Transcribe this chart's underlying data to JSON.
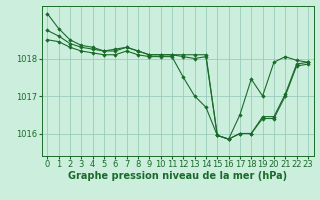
{
  "background_color": "#cceedd",
  "grid_color": "#99ccbb",
  "line_color": "#1a6b2a",
  "marker_color": "#1a6b2a",
  "xlabel": "Graphe pression niveau de la mer (hPa)",
  "xlabel_fontsize": 7,
  "tick_fontsize": 6,
  "yticks": [
    1016,
    1017,
    1018
  ],
  "ylim": [
    1015.4,
    1019.4
  ],
  "xlim": [
    -0.5,
    23.5
  ],
  "xticks": [
    0,
    1,
    2,
    3,
    4,
    5,
    6,
    7,
    8,
    9,
    10,
    11,
    12,
    13,
    14,
    15,
    16,
    17,
    18,
    19,
    20,
    21,
    22,
    23
  ],
  "series": [
    [
      1019.2,
      1018.8,
      1018.5,
      1018.35,
      1018.3,
      1018.2,
      1018.25,
      1018.3,
      1018.2,
      1018.1,
      1018.1,
      1018.1,
      1018.1,
      1018.1,
      1018.1,
      1015.95,
      1015.85,
      1016.5,
      1017.45,
      1017.0,
      1017.9,
      1018.05,
      1017.95,
      1017.9
    ],
    [
      1018.75,
      1018.6,
      1018.4,
      1018.3,
      1018.25,
      1018.2,
      1018.2,
      1018.3,
      1018.2,
      1018.1,
      1018.1,
      1018.1,
      1018.05,
      1018.0,
      1018.05,
      1015.95,
      1015.85,
      1016.0,
      1016.0,
      1016.45,
      1016.45,
      1017.05,
      1017.85,
      1017.9
    ],
    [
      1018.5,
      1018.45,
      1018.3,
      1018.2,
      1018.15,
      1018.1,
      1018.1,
      1018.2,
      1018.1,
      1018.05,
      1018.05,
      1018.05,
      1017.5,
      1017.0,
      1016.7,
      1015.95,
      1015.85,
      1016.0,
      1016.0,
      1016.4,
      1016.4,
      1017.0,
      1017.8,
      1017.85
    ]
  ]
}
